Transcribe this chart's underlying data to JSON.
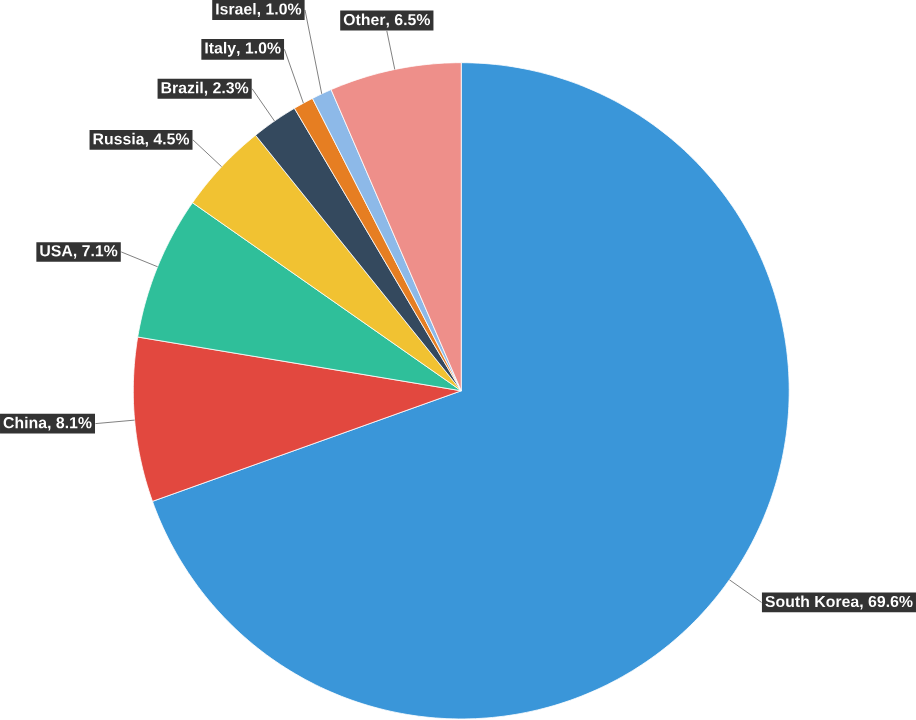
{
  "chart_data": {
    "type": "pie",
    "categories": [
      "South Korea",
      "China",
      "USA",
      "Russia",
      "Brazil",
      "Italy",
      "Israel",
      "Other"
    ],
    "values": [
      69.6,
      8.1,
      7.1,
      4.5,
      2.3,
      1.0,
      1.0,
      6.5
    ],
    "value_labels": [
      ", 69.6%",
      ", 8.1%",
      ", 7.1%",
      ", 4.5%",
      ", 2.3%",
      ", 1.0%",
      ", 1.0%",
      ", 6.5%"
    ],
    "colors": [
      "#3a96d9",
      "#e2483f",
      "#2fbf9a",
      "#f1c232",
      "#34495e",
      "#e67e22",
      "#8db9e8",
      "#ee8f8a"
    ]
  }
}
